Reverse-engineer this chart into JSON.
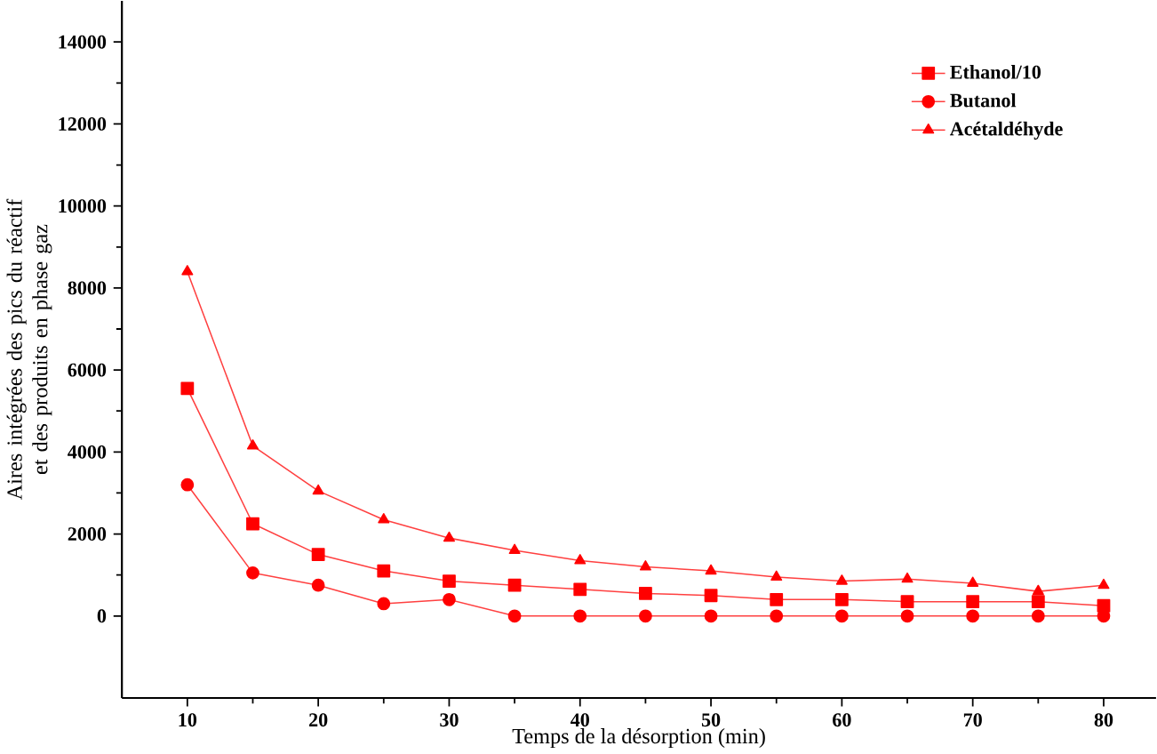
{
  "chart_data": {
    "type": "line",
    "xlabel": "Temps de la désorption (min)",
    "ylabel": "Aires intégrées des pics du réactif et des produits en phase gaz",
    "x": [
      10,
      15,
      20,
      25,
      30,
      35,
      40,
      45,
      50,
      55,
      60,
      65,
      70,
      75,
      80
    ],
    "series": [
      {
        "name": "Ethanol/10",
        "color": "#ff0000",
        "marker": "square",
        "values": [
          5550,
          2250,
          1500,
          1100,
          850,
          750,
          650,
          550,
          500,
          400,
          400,
          350,
          350,
          350,
          250
        ]
      },
      {
        "name": "Butanol",
        "color": "#ff0000",
        "marker": "circle",
        "values": [
          3200,
          1050,
          750,
          300,
          400,
          0,
          0,
          0,
          0,
          0,
          0,
          0,
          0,
          0,
          0
        ]
      },
      {
        "name": "Acétaldéhyde",
        "color": "#ff0000",
        "marker": "triangle",
        "values": [
          8400,
          4150,
          3050,
          2350,
          1900,
          1600,
          1350,
          1200,
          1100,
          950,
          850,
          900,
          800,
          600,
          750
        ]
      }
    ],
    "xlim": [
      5,
      84
    ],
    "ylim": [
      -2000,
      15000
    ],
    "xticks": [
      10,
      20,
      30,
      40,
      50,
      60,
      70,
      80
    ],
    "yticks": [
      0,
      2000,
      4000,
      6000,
      8000,
      10000,
      12000,
      14000
    ],
    "legend": "top right",
    "grid": false,
    "line_style": "solid"
  }
}
